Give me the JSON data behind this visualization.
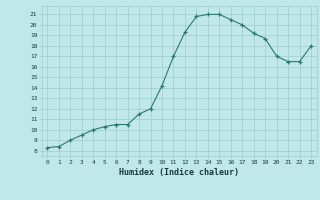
{
  "x": [
    0,
    1,
    2,
    3,
    4,
    5,
    6,
    7,
    8,
    9,
    10,
    11,
    12,
    13,
    14,
    15,
    16,
    17,
    18,
    19,
    20,
    21,
    22,
    23
  ],
  "y": [
    8.3,
    8.4,
    9.0,
    9.5,
    10.0,
    10.3,
    10.5,
    10.5,
    11.5,
    12.0,
    14.2,
    17.0,
    19.3,
    20.8,
    21.0,
    21.0,
    20.5,
    20.0,
    19.2,
    18.7,
    17.0,
    16.5,
    16.5,
    18.0
  ],
  "line_color": "#2d7a6a",
  "marker": "+",
  "marker_color": "#2d7a6a",
  "bg_color": "#c0e8e8",
  "grid_color": "#a0cccc",
  "xlabel": "Humidex (Indice chaleur)",
  "ylabel_ticks": [
    8,
    9,
    10,
    11,
    12,
    13,
    14,
    15,
    16,
    17,
    18,
    19,
    20,
    21
  ],
  "ylim": [
    7.5,
    21.8
  ],
  "xlim": [
    -0.5,
    23.5
  ],
  "xticks": [
    0,
    1,
    2,
    3,
    4,
    5,
    6,
    7,
    8,
    9,
    10,
    11,
    12,
    13,
    14,
    15,
    16,
    17,
    18,
    19,
    20,
    21,
    22,
    23
  ]
}
